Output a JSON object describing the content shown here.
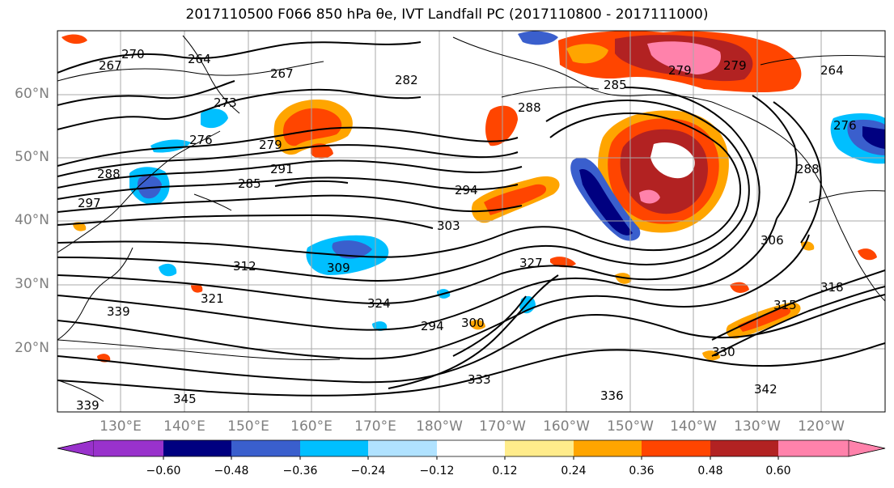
{
  "title": "2017110500 F066 850 hPa θe, IVT Landfall PC (2017110800 - 2017111000)",
  "latitude_labels": [
    "60°N",
    "50°N",
    "40°N",
    "30°N",
    "20°N"
  ],
  "longitude_labels": [
    "130°E",
    "140°E",
    "150°E",
    "160°E",
    "170°E",
    "180°W",
    "170°W",
    "160°W",
    "150°W",
    "140°W",
    "130°W",
    "120°W"
  ],
  "colorbar": {
    "ticks": [
      "−0.60",
      "−0.48",
      "−0.36",
      "−0.24",
      "−0.12",
      "0.12",
      "0.24",
      "0.36",
      "0.48",
      "0.60"
    ],
    "colors": [
      "#9932cc",
      "#000080",
      "#3a5fcd",
      "#00bfff",
      "#b0e2ff",
      "#ffffff",
      "#ffec8b",
      "#ffa500",
      "#ff4500",
      "#b22222",
      "#ff82ab"
    ],
    "extend": "both"
  },
  "contour_labels": [
    "267",
    "270",
    "264",
    "267",
    "273",
    "282",
    "288",
    "264",
    "279",
    "279",
    "276",
    "279",
    "288",
    "285",
    "288",
    "291",
    "294",
    "303",
    "306",
    "309",
    "312",
    "321",
    "324",
    "327",
    "339",
    "330",
    "333",
    "336",
    "342",
    "345",
    "315",
    "318",
    "339",
    "276",
    "285",
    "300",
    "297",
    "294"
  ]
}
